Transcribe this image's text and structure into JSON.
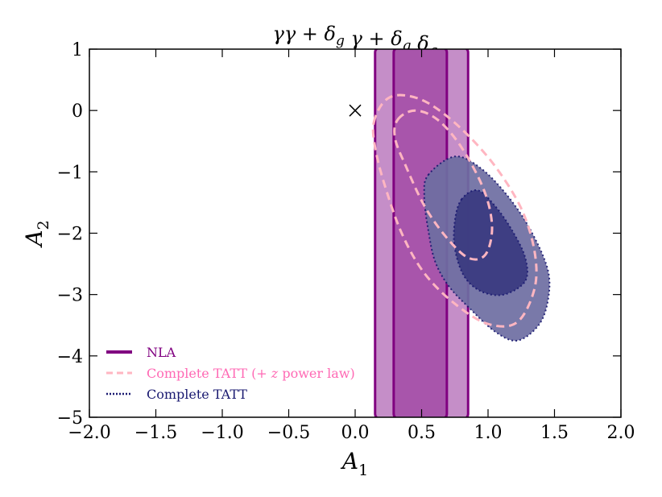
{
  "chart_data": {
    "type": "contour",
    "title": "γγ + δ_g γ + δ_g δ_g",
    "xlabel": "A_1",
    "ylabel": "A_2",
    "xlim": [
      -2.0,
      2.0
    ],
    "ylim": [
      -5,
      1
    ],
    "xticks": [
      -2.0,
      -1.5,
      -1.0,
      -0.5,
      0.0,
      0.5,
      1.0,
      1.5,
      2.0
    ],
    "xtick_labels": [
      "−2.0",
      "−1.5",
      "−1.0",
      "−0.5",
      "0.0",
      "0.5",
      "1.0",
      "1.5",
      "2.0"
    ],
    "yticks": [
      1,
      0,
      -1,
      -2,
      -3,
      -4,
      -5
    ],
    "ytick_labels": [
      "1",
      "0",
      "−1",
      "−2",
      "−3",
      "−4",
      "−5"
    ],
    "marker": {
      "x": 0.0,
      "y": 0.0,
      "symbol": "×"
    },
    "legend_position": "lower-left",
    "series": [
      {
        "name": "NLA",
        "style": "solid",
        "color": "#800080",
        "contours": [
          {
            "level": "95%",
            "x_range": [
              0.15,
              0.85
            ],
            "y_range": [
              -5,
              1
            ],
            "fill": "#c58ec8"
          },
          {
            "level": "68%",
            "x_range": [
              0.29,
              0.69
            ],
            "y_range": [
              -5,
              1
            ],
            "fill": "#a855ab"
          }
        ]
      },
      {
        "name": "Complete TATT (+ z power law)",
        "style": "dashed",
        "color": "#ffb6c1",
        "legend_text_color": "#ff69b4",
        "contours": [
          {
            "level": "95%",
            "points": [
              [
                0.14,
                -0.2
              ],
              [
                0.22,
                0.15
              ],
              [
                0.35,
                0.25
              ],
              [
                0.55,
                0.12
              ],
              [
                0.8,
                -0.3
              ],
              [
                1.05,
                -0.9
              ],
              [
                1.25,
                -1.6
              ],
              [
                1.35,
                -2.3
              ],
              [
                1.35,
                -2.9
              ],
              [
                1.22,
                -3.45
              ],
              [
                1.0,
                -3.48
              ],
              [
                0.75,
                -3.15
              ],
              [
                0.52,
                -2.65
              ],
              [
                0.35,
                -2.0
              ],
              [
                0.22,
                -1.2
              ],
              [
                0.15,
                -0.6
              ]
            ]
          },
          {
            "level": "68%",
            "points": [
              [
                0.32,
                -0.15
              ],
              [
                0.45,
                0.0
              ],
              [
                0.62,
                -0.15
              ],
              [
                0.8,
                -0.6
              ],
              [
                0.97,
                -1.3
              ],
              [
                1.03,
                -1.9
              ],
              [
                0.98,
                -2.35
              ],
              [
                0.85,
                -2.4
              ],
              [
                0.68,
                -2.05
              ],
              [
                0.52,
                -1.55
              ],
              [
                0.38,
                -0.9
              ],
              [
                0.3,
                -0.45
              ]
            ]
          }
        ]
      },
      {
        "name": "Complete TATT",
        "style": "dotted",
        "color": "#191970",
        "contours": [
          {
            "level": "95%",
            "fill": "#6e6ea2",
            "points": [
              [
                0.55,
                -1.05
              ],
              [
                0.75,
                -0.75
              ],
              [
                0.95,
                -0.95
              ],
              [
                1.15,
                -1.4
              ],
              [
                1.32,
                -1.95
              ],
              [
                1.45,
                -2.6
              ],
              [
                1.45,
                -3.1
              ],
              [
                1.38,
                -3.5
              ],
              [
                1.22,
                -3.75
              ],
              [
                1.05,
                -3.6
              ],
              [
                0.85,
                -3.2
              ],
              [
                0.7,
                -2.85
              ],
              [
                0.6,
                -2.45
              ],
              [
                0.55,
                -1.95
              ],
              [
                0.52,
                -1.4
              ]
            ]
          },
          {
            "level": "68%",
            "fill": "#3a3a80",
            "points": [
              [
                0.8,
                -1.45
              ],
              [
                0.92,
                -1.3
              ],
              [
                1.05,
                -1.55
              ],
              [
                1.18,
                -1.95
              ],
              [
                1.28,
                -2.4
              ],
              [
                1.28,
                -2.78
              ],
              [
                1.12,
                -3.0
              ],
              [
                0.95,
                -2.95
              ],
              [
                0.82,
                -2.7
              ],
              [
                0.75,
                -2.25
              ],
              [
                0.75,
                -1.8
              ]
            ]
          }
        ]
      }
    ],
    "legend": [
      {
        "label": "NLA",
        "color": "#800080",
        "text_color": "#800080",
        "style": "solid"
      },
      {
        "label": "Complete TATT (+ z power law)",
        "color": "#ffb6c1",
        "text_color": "#ff69b4",
        "style": "dashed"
      },
      {
        "label": "Complete TATT",
        "color": "#191970",
        "text_color": "#191970",
        "style": "dotted"
      }
    ]
  }
}
